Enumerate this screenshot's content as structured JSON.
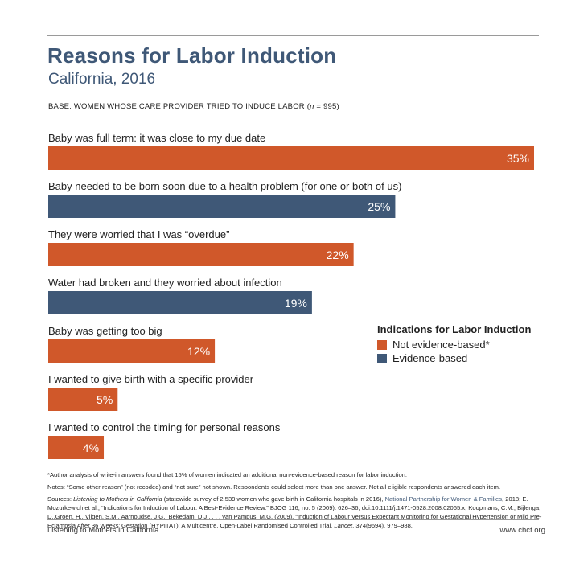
{
  "header": {
    "title": "Reasons for Labor Induction",
    "subtitle": "California, 2016",
    "base_prefix": "BASE: WOMEN WHOSE CARE PROVIDER TRIED TO INDUCE LABOR (",
    "base_n": "n",
    "base_suffix": " = 995)"
  },
  "chart_data": {
    "type": "bar",
    "orientation": "horizontal",
    "title": "Reasons for Labor Induction",
    "subtitle": "California, 2016",
    "categories": [
      "Baby was full term: it was close to my due date",
      "Baby needed to be born soon due to a health problem (for one or both of us)",
      "They were worried that I was “overdue”",
      "Water had broken and they worried about infection",
      "Baby was getting too big",
      "I wanted to give birth with a specific provider",
      "I wanted to control the timing for personal reasons"
    ],
    "values": [
      35,
      25,
      22,
      19,
      12,
      5,
      4
    ],
    "value_labels": [
      "35%",
      "25%",
      "22%",
      "19%",
      "12%",
      "5%",
      "4%"
    ],
    "value_unit": "%",
    "classification": [
      "Not evidence-based*",
      "Evidence-based",
      "Not evidence-based*",
      "Evidence-based",
      "Not evidence-based*",
      "Not evidence-based*",
      "Not evidence-based*"
    ],
    "colors": {
      "Not evidence-based*": "#d0582a",
      "Evidence-based": "#3f5877"
    },
    "legend": {
      "title": "Indications for Labor Induction",
      "placement": "right",
      "items": [
        {
          "label": "Not evidence-based*",
          "color": "#d0582a"
        },
        {
          "label": "Evidence-based",
          "color": "#3f5877"
        }
      ]
    }
  },
  "notes": {
    "footnote": "*Author analysis of write-in answers found that 15% of women indicated an additional non-evidence-based reason for labor induction.",
    "notes_line": "Notes: “Some other reason” (not recoded) and “not sure” not shown. Respondents could select more than one answer. Not all eligible respondents answered each item.",
    "sources_prefix": "Sources: ",
    "sources_italic": "Listening to Mothers in California",
    "sources_part1": " (statewide survey of 2,539 women who gave birth in California hospitals in 2016), ",
    "sources_link": "National Partnership for Women & Families",
    "sources_part2": ", 2018; E. Mozurkewich et al., “Indications for Induction of Labour: A Best-Evidence Review.” BJOG 116, no. 5 (2009): 626–36, doi:10.1111/j.1471-0528.2008.02065.x; Koopmans, C.M., Bijlenga, D.,Groen, H., Vijgen, S.M., Aarnoudse, J.G., Bekedam, D.J., . . . van Pampus, M.G. (2009). “Induction of Labour Versus Expectant Monitoring for Gestational Hypertension or Mild Pre-Eclampsia After 36 Weeks’ Gestation (HYPITAT): A Multicentre, Open-Label Randomised Controlled Trial. ",
    "sources_lancet": "Lancet",
    "sources_part3": ", 374(9694), 979–988."
  },
  "footer": {
    "left": "Listening to Mothers in California",
    "right": "www.chcf.org"
  }
}
